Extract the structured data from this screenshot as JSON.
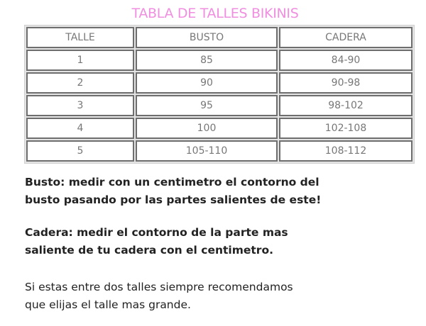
{
  "title": "TABLA DE TALLES BIKINIS",
  "table": {
    "headers": [
      "TALLE",
      "BUSTO",
      "CADERA"
    ],
    "rows": [
      [
        "1",
        "85",
        "84-90"
      ],
      [
        "2",
        "90",
        "90-98"
      ],
      [
        "3",
        "95",
        "98-102"
      ],
      [
        "4",
        "100",
        "102-108"
      ],
      [
        "5",
        "105-110",
        "108-112"
      ]
    ]
  },
  "notes": {
    "busto": [
      "Busto: medir con un centimetro el contorno del",
      "busto pasando por las partes salientes de este!"
    ],
    "cadera": [
      "Cadera: medir el contorno de la parte mas",
      "saliente de tu cadera con el centimetro."
    ],
    "recomendacion": [
      "Si estas entre dos talles siempre recomendamos",
      "que elijas el talle mas grande."
    ]
  },
  "colors": {
    "title": "#f08fe0",
    "cell_text": "#777777",
    "border": "#6e6e6e"
  }
}
